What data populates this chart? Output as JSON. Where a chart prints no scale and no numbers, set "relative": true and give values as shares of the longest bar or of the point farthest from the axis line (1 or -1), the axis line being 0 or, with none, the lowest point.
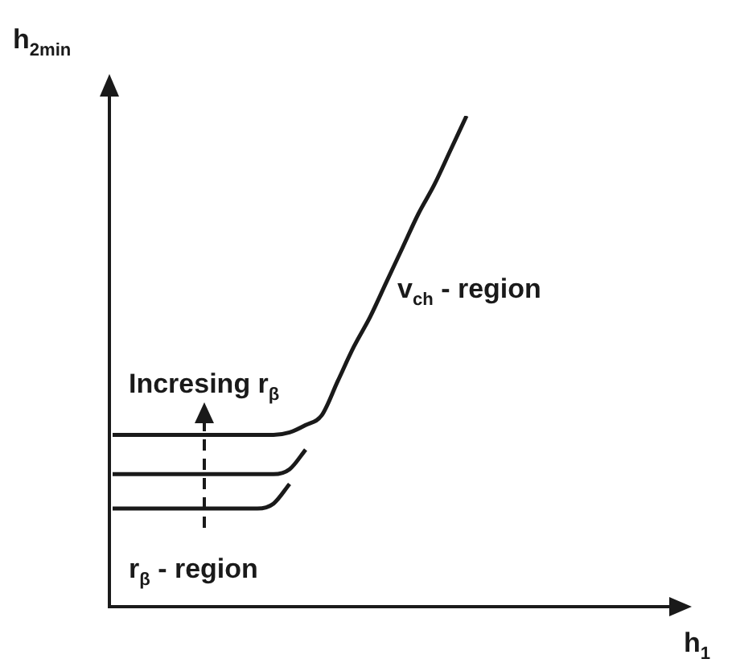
{
  "chart_data": {
    "type": "line",
    "relative": true,
    "xlabel": "h$_{1}$",
    "ylabel": "h$_{2min}$",
    "annotations": [
      "v$_{ch}$ - region",
      "Incresing r$_{β}$",
      "r$_{β}$ - region"
    ],
    "categories": [
      null,
      null,
      null,
      null,
      null,
      null,
      null,
      null,
      null,
      null,
      null,
      null,
      null,
      null,
      null,
      null,
      null,
      null,
      null,
      null,
      null,
      null,
      null,
      null,
      null,
      null,
      null,
      null,
      null,
      null,
      null,
      null,
      null,
      null,
      null,
      null
    ],
    "series": [
      {
        "color": "#1a1a1a",
        "values": [
          0.35,
          0.35,
          0.35,
          0.35,
          0.35,
          0.35,
          0.35,
          0.35,
          0.35,
          0.35,
          0.35,
          0.355,
          0.37,
          0.39,
          0.46,
          0.53,
          0.59,
          0.66,
          0.73,
          0.8,
          0.86,
          0.93,
          1.0,
          null,
          null,
          null,
          null,
          null,
          null,
          null,
          null,
          null,
          null,
          null,
          null,
          null
        ]
      },
      {
        "color": "#1a1a1a",
        "values": [
          0.27,
          0.27,
          0.27,
          0.27,
          0.27,
          0.27,
          0.27,
          0.27,
          0.27,
          0.27,
          0.27,
          0.28,
          0.32,
          null,
          null,
          null,
          null,
          null,
          null,
          null,
          null,
          null,
          null,
          null,
          null,
          null,
          null,
          null,
          null,
          null,
          null,
          null,
          null,
          null,
          null,
          null
        ]
      },
      {
        "color": "#1a1a1a",
        "values": [
          0.2,
          0.2,
          0.2,
          0.2,
          0.2,
          0.2,
          0.2,
          0.2,
          0.2,
          0.2,
          0.21,
          0.25,
          null,
          null,
          null,
          null,
          null,
          null,
          null,
          null,
          null,
          null,
          null,
          null,
          null,
          null,
          null,
          null,
          null,
          null,
          null,
          null,
          null,
          null,
          null,
          null
        ]
      }
    ],
    "legend": false,
    "marker": "none",
    "line_style": "solid"
  }
}
